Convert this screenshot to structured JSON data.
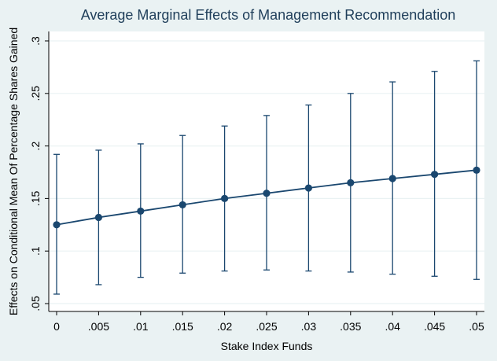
{
  "chart_data": {
    "type": "line",
    "title": "Average Marginal Effects of Management Recommendation",
    "xlabel": "Stake Index Funds",
    "ylabel": "Effects on Conditional Mean Of Percentage Shares Gained",
    "x": [
      0,
      0.005,
      0.01,
      0.015,
      0.02,
      0.025,
      0.03,
      0.035,
      0.04,
      0.045,
      0.05
    ],
    "x_tick_labels": [
      "0",
      ".005",
      ".01",
      ".015",
      ".02",
      ".025",
      ".03",
      ".035",
      ".04",
      ".045",
      ".05"
    ],
    "y_ticks": [
      0.05,
      0.1,
      0.15,
      0.2,
      0.25,
      0.3
    ],
    "y_tick_labels": [
      ".05",
      ".1",
      ".15",
      ".2",
      ".25",
      ".3"
    ],
    "xlim": [
      0,
      0.05
    ],
    "ylim": [
      0.05,
      0.3
    ],
    "grid": "horizontal",
    "legend": "none",
    "series": [
      {
        "values": [
          0.125,
          0.132,
          0.138,
          0.144,
          0.15,
          0.155,
          0.16,
          0.165,
          0.169,
          0.173,
          0.177
        ],
        "ci_lower": [
          0.059,
          0.068,
          0.075,
          0.079,
          0.081,
          0.082,
          0.081,
          0.08,
          0.078,
          0.076,
          0.073
        ],
        "ci_upper": [
          0.192,
          0.196,
          0.202,
          0.21,
          0.219,
          0.229,
          0.239,
          0.25,
          0.261,
          0.271,
          0.281
        ]
      }
    ],
    "colors": {
      "background": "#eaf2f3",
      "plot_area": "#ffffff",
      "series": "#1a476f",
      "grid": "#eaf2f3",
      "title": "#1f3e5a"
    }
  }
}
